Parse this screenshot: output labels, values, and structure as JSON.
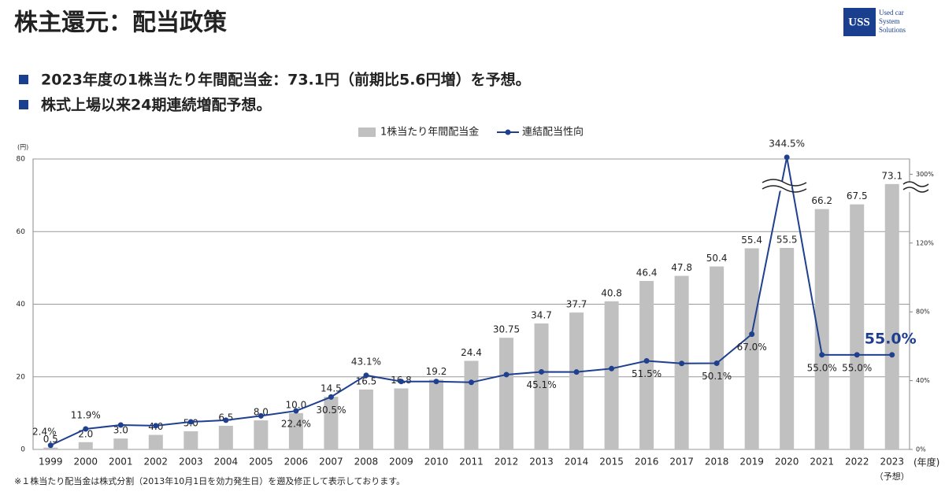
{
  "title": "株主還元：配当政策",
  "logo": {
    "name": "USS",
    "tagline": [
      "Used car",
      "System",
      "Solutions"
    ]
  },
  "bullets": [
    "2023年度の1株当たり年間配当金：73.1円（前期比5.6円増）を予想。",
    "株式上場以来24期連続増配予想。"
  ],
  "chart_data": {
    "type": "combo",
    "categories": [
      "1999",
      "2000",
      "2001",
      "2002",
      "2003",
      "2004",
      "2005",
      "2006",
      "2007",
      "2008",
      "2009",
      "2010",
      "2011",
      "2012",
      "2013",
      "2014",
      "2015",
      "2016",
      "2017",
      "2018",
      "2019",
      "2020",
      "2021",
      "2022",
      "2023"
    ],
    "series": [
      {
        "name": "1株当たり年間配当金",
        "type": "bar",
        "color": "#c0c0c0",
        "values": [
          0.5,
          2.0,
          3.0,
          4.0,
          5.0,
          6.5,
          8.0,
          10.0,
          14.5,
          16.5,
          16.8,
          19.2,
          24.4,
          30.75,
          34.7,
          37.7,
          40.8,
          46.4,
          47.8,
          50.4,
          55.4,
          55.5,
          66.2,
          67.5,
          73.1
        ],
        "value_labels": [
          "0.5",
          "2.0",
          "3.0",
          "4.0",
          "5.0",
          "6.5",
          "8.0",
          "10.0",
          "14.5",
          "16.5",
          "16.8",
          "19.2",
          "24.4",
          "30.75",
          "34.7",
          "37.7",
          "40.8",
          "46.4",
          "47.8",
          "50.4",
          "55.4",
          "55.5",
          "66.2",
          "67.5",
          "73.1"
        ]
      },
      {
        "name": "連結配当性向",
        "type": "line",
        "axis": "y2",
        "color": "#1f3f8f",
        "values": [
          2.4,
          11.9,
          14.2,
          13.8,
          16,
          17,
          19.5,
          22.4,
          30.5,
          43.1,
          39.5,
          39.5,
          39,
          43.5,
          45.1,
          45,
          47,
          51.5,
          50,
          50.1,
          67,
          344.5,
          55,
          55,
          55
        ],
        "value_labels": [
          "2.4%",
          "11.9%",
          null,
          null,
          null,
          null,
          null,
          "22.4%",
          "30.5%",
          "43.1%",
          null,
          null,
          null,
          null,
          "45.1%",
          null,
          null,
          "51.5%",
          null,
          "50.1%",
          "67.0%",
          "344.5%",
          "55.0%",
          "55.0%",
          "55.0%"
        ]
      }
    ],
    "ylim": [
      0,
      80
    ],
    "yticks": [
      0,
      20,
      40,
      60,
      80
    ],
    "grid": true,
    "y2lim": [
      0,
      340
    ],
    "y2ticks": [
      {
        "value": 0,
        "label": "0%"
      },
      {
        "value": 40,
        "label": "40%"
      },
      {
        "value": 80,
        "label": "80%"
      },
      {
        "value": 120,
        "label": "120%"
      },
      {
        "value": 300,
        "label": "300%"
      }
    ],
    "y_unit": "(円)",
    "x_unit": "(年度)",
    "forecast_note": "（予想）",
    "footnote": "※１株当たり配当金は株式分割（2013年10月1日を効力発生日）を遡及修正して表示しております。"
  }
}
